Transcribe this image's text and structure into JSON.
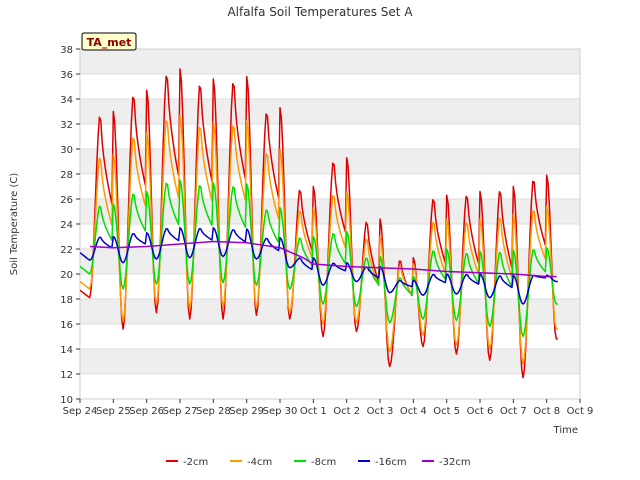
{
  "chart_data": {
    "type": "line",
    "title": "Alfalfa Soil Temperatures Set A",
    "xlabel": "Time",
    "ylabel": "Soil Temperature (C)",
    "annotation": "TA_met",
    "xlim": [
      0,
      15
    ],
    "ylim": [
      10,
      38
    ],
    "yticks": [
      10,
      12,
      14,
      16,
      18,
      20,
      22,
      24,
      26,
      28,
      30,
      32,
      34,
      36,
      38
    ],
    "xtick_labels": [
      "Sep 24",
      "Sep 25",
      "Sep 26",
      "Sep 27",
      "Sep 28",
      "Sep 29",
      "Sep 30",
      "Oct 1",
      "Oct 2",
      "Oct 3",
      "Oct 4",
      "Oct 5",
      "Oct 6",
      "Oct 7",
      "Oct 8",
      "Oct 9"
    ],
    "grid": true,
    "legend_position": "bottom-center",
    "series": [
      {
        "name": "-2cm",
        "color": "#dd0000",
        "days": [
          {
            "min": 18.1,
            "max": 33.0
          },
          {
            "min": 15.6,
            "max": 34.7
          },
          {
            "min": 16.9,
            "max": 36.4
          },
          {
            "min": 16.4,
            "max": 35.6
          },
          {
            "min": 16.4,
            "max": 35.8
          },
          {
            "min": 16.7,
            "max": 33.3
          },
          {
            "min": 16.4,
            "max": 27.0
          },
          {
            "min": 15.0,
            "max": 29.3
          },
          {
            "min": 15.4,
            "max": 24.4
          },
          {
            "min": 12.6,
            "max": 21.3
          },
          {
            "min": 14.2,
            "max": 26.3
          },
          {
            "min": 13.6,
            "max": 26.6
          },
          {
            "min": 13.1,
            "max": 27.0
          },
          {
            "min": 11.7,
            "max": 27.9
          },
          {
            "min": 14.8,
            "max": 14.8
          }
        ]
      },
      {
        "name": "-4cm",
        "color": "#ff9900",
        "days": [
          {
            "min": 18.8,
            "max": 29.6
          },
          {
            "min": 16.2,
            "max": 31.3
          },
          {
            "min": 17.6,
            "max": 32.7
          },
          {
            "min": 17.2,
            "max": 32.2
          },
          {
            "min": 17.3,
            "max": 32.3
          },
          {
            "min": 17.3,
            "max": 30.0
          },
          {
            "min": 16.9,
            "max": 25.3
          },
          {
            "min": 16.0,
            "max": 26.6
          },
          {
            "min": 16.1,
            "max": 23.0
          },
          {
            "min": 13.8,
            "max": 20.8
          },
          {
            "min": 15.1,
            "max": 24.4
          },
          {
            "min": 14.3,
            "max": 24.4
          },
          {
            "min": 14.0,
            "max": 24.8
          },
          {
            "min": 12.8,
            "max": 25.4
          },
          {
            "min": 15.6,
            "max": 15.6
          }
        ]
      },
      {
        "name": "-8cm",
        "color": "#00dd00",
        "days": [
          {
            "min": 20.0,
            "max": 25.6
          },
          {
            "min": 18.8,
            "max": 26.6
          },
          {
            "min": 19.2,
            "max": 27.5
          },
          {
            "min": 19.2,
            "max": 27.3
          },
          {
            "min": 19.3,
            "max": 27.2
          },
          {
            "min": 19.1,
            "max": 25.3
          },
          {
            "min": 18.8,
            "max": 23.0
          },
          {
            "min": 17.6,
            "max": 23.4
          },
          {
            "min": 17.4,
            "max": 21.4
          },
          {
            "min": 16.1,
            "max": 19.8
          },
          {
            "min": 16.4,
            "max": 22.0
          },
          {
            "min": 16.3,
            "max": 21.8
          },
          {
            "min": 15.8,
            "max": 21.9
          },
          {
            "min": 15.0,
            "max": 22.1
          },
          {
            "min": 17.6,
            "max": 17.6
          }
        ]
      },
      {
        "name": "-16cm",
        "color": "#0000cc",
        "days": [
          {
            "min": 21.1,
            "max": 23.0
          },
          {
            "min": 20.9,
            "max": 23.3
          },
          {
            "min": 21.2,
            "max": 23.7
          },
          {
            "min": 21.3,
            "max": 23.7
          },
          {
            "min": 21.4,
            "max": 23.6
          },
          {
            "min": 21.2,
            "max": 22.9
          },
          {
            "min": 20.5,
            "max": 21.3
          },
          {
            "min": 19.1,
            "max": 20.9
          },
          {
            "min": 19.4,
            "max": 20.6
          },
          {
            "min": 18.5,
            "max": 19.5
          },
          {
            "min": 18.3,
            "max": 20.0
          },
          {
            "min": 18.4,
            "max": 20.0
          },
          {
            "min": 18.1,
            "max": 19.9
          },
          {
            "min": 17.6,
            "max": 19.9
          },
          {
            "min": 19.4,
            "max": 19.4
          }
        ]
      },
      {
        "name": "-32cm",
        "color": "#9900cc",
        "x": [
          0.3,
          1.0,
          2.0,
          3.0,
          4.0,
          5.0,
          6.0,
          6.7,
          7.0,
          8.0,
          9.0,
          10.0,
          11.0,
          12.0,
          13.0,
          14.0,
          14.3
        ],
        "y": [
          22.2,
          22.1,
          22.2,
          22.4,
          22.6,
          22.5,
          22.1,
          21.3,
          20.8,
          20.6,
          20.5,
          20.4,
          20.2,
          20.1,
          20.0,
          19.8,
          19.8
        ]
      }
    ]
  }
}
